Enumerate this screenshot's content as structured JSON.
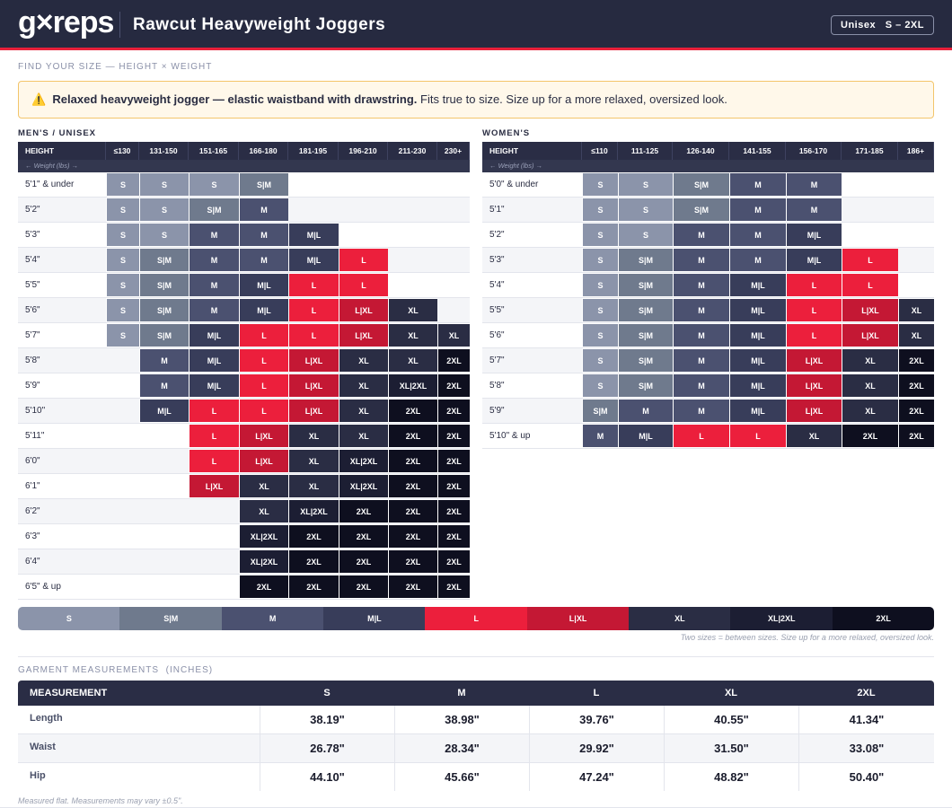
{
  "header": {
    "logo": "g×reps",
    "title": "Rawcut Heavyweight Joggers",
    "badge_fit": "Unisex",
    "badge_range": "S – 2XL"
  },
  "section_title": "FIND YOUR SIZE — HEIGHT × WEIGHT",
  "notice": {
    "icon": "⚠️",
    "bold": "Relaxed heavyweight jogger — elastic waistband with drawstring.",
    "text": "Fits true to size. Size up for a more relaxed, oversized look."
  },
  "mens_table": {
    "title": "MEN'S / UNISEX",
    "header": [
      "HEIGHT",
      "≤130",
      "131-150",
      "151-165",
      "166-180",
      "181-195",
      "196-210",
      "211-230",
      "230+"
    ],
    "weight_note": "← Weight (lbs) →",
    "rows": [
      {
        "height": "5'1\" & under",
        "sizes": [
          "S",
          "S",
          "S",
          "S|M",
          null,
          null,
          null,
          null
        ]
      },
      {
        "height": "5'2\"",
        "sizes": [
          "S",
          "S",
          "S|M",
          "M",
          null,
          null,
          null,
          null
        ]
      },
      {
        "height": "5'3\"",
        "sizes": [
          "S",
          "S",
          "M",
          "M",
          "M|L",
          null,
          null,
          null
        ]
      },
      {
        "height": "5'4\"",
        "sizes": [
          "S",
          "S|M",
          "M",
          "M",
          "M|L",
          "L",
          null,
          null
        ]
      },
      {
        "height": "5'5\"",
        "sizes": [
          "S",
          "S|M",
          "M",
          "M|L",
          "L",
          "L",
          null,
          null
        ]
      },
      {
        "height": "5'6\"",
        "sizes": [
          "S",
          "S|M",
          "M",
          "M|L",
          "L",
          "L|XL",
          "XL",
          null
        ]
      },
      {
        "height": "5'7\"",
        "sizes": [
          "S",
          "S|M",
          "M|L",
          "L",
          "L",
          "L|XL",
          "XL",
          "XL"
        ]
      },
      {
        "height": "5'8\"",
        "sizes": [
          null,
          "M",
          "M|L",
          "L",
          "L|XL",
          "XL",
          "XL",
          "2XL"
        ]
      },
      {
        "height": "5'9\"",
        "sizes": [
          null,
          "M",
          "M|L",
          "L",
          "L|XL",
          "XL",
          "XL|2XL",
          "2XL"
        ]
      },
      {
        "height": "5'10\"",
        "sizes": [
          null,
          "M|L",
          "L",
          "L",
          "L|XL",
          "XL",
          "2XL",
          "2XL"
        ]
      },
      {
        "height": "5'11\"",
        "sizes": [
          null,
          null,
          "L",
          "L|XL",
          "XL",
          "XL",
          "2XL",
          "2XL"
        ]
      },
      {
        "height": "6'0\"",
        "sizes": [
          null,
          null,
          "L",
          "L|XL",
          "XL",
          "XL|2XL",
          "2XL",
          "2XL"
        ]
      },
      {
        "height": "6'1\"",
        "sizes": [
          null,
          null,
          "L|XL",
          "XL",
          "XL",
          "XL|2XL",
          "2XL",
          "2XL"
        ]
      },
      {
        "height": "6'2\"",
        "sizes": [
          null,
          null,
          null,
          "XL",
          "XL|2XL",
          "2XL",
          "2XL",
          "2XL"
        ]
      },
      {
        "height": "6'3\"",
        "sizes": [
          null,
          null,
          null,
          "XL|2XL",
          "2XL",
          "2XL",
          "2XL",
          "2XL"
        ]
      },
      {
        "height": "6'4\"",
        "sizes": [
          null,
          null,
          null,
          "XL|2XL",
          "2XL",
          "2XL",
          "2XL",
          "2XL"
        ]
      },
      {
        "height": "6'5\" & up",
        "sizes": [
          null,
          null,
          null,
          "2XL",
          "2XL",
          "2XL",
          "2XL",
          "2XL"
        ]
      }
    ]
  },
  "womens_table": {
    "title": "WOMEN'S",
    "header": [
      "HEIGHT",
      "≤110",
      "111-125",
      "126-140",
      "141-155",
      "156-170",
      "171-185",
      "186+"
    ],
    "weight_note": "← Weight (lbs) →",
    "rows": [
      {
        "height": "5'0\" & under",
        "sizes": [
          "S",
          "S",
          "S|M",
          "M",
          "M",
          null,
          null
        ]
      },
      {
        "height": "5'1\"",
        "sizes": [
          "S",
          "S",
          "S|M",
          "M",
          "M",
          null,
          null
        ]
      },
      {
        "height": "5'2\"",
        "sizes": [
          "S",
          "S",
          "M",
          "M",
          "M|L",
          null,
          null
        ]
      },
      {
        "height": "5'3\"",
        "sizes": [
          "S",
          "S|M",
          "M",
          "M",
          "M|L",
          "L",
          null
        ]
      },
      {
        "height": "5'4\"",
        "sizes": [
          "S",
          "S|M",
          "M",
          "M|L",
          "L",
          "L",
          null
        ]
      },
      {
        "height": "5'5\"",
        "sizes": [
          "S",
          "S|M",
          "M",
          "M|L",
          "L",
          "L|XL",
          "XL"
        ]
      },
      {
        "height": "5'6\"",
        "sizes": [
          "S",
          "S|M",
          "M",
          "M|L",
          "L",
          "L|XL",
          "XL"
        ]
      },
      {
        "height": "5'7\"",
        "sizes": [
          "S",
          "S|M",
          "M",
          "M|L",
          "L|XL",
          "XL",
          "2XL"
        ]
      },
      {
        "height": "5'8\"",
        "sizes": [
          "S",
          "S|M",
          "M",
          "M|L",
          "L|XL",
          "XL",
          "2XL"
        ]
      },
      {
        "height": "5'9\"",
        "sizes": [
          "S|M",
          "M",
          "M",
          "M|L",
          "L|XL",
          "XL",
          "2XL"
        ]
      },
      {
        "height": "5'10\" & up",
        "sizes": [
          "M",
          "M|L",
          "L",
          "L",
          "XL",
          "2XL",
          "2XL"
        ]
      }
    ]
  },
  "legend": {
    "items": [
      {
        "label": "S",
        "color": "#8b94aa"
      },
      {
        "label": "S|M",
        "color": "#6f7a8d"
      },
      {
        "label": "M",
        "color": "#4b5170"
      },
      {
        "label": "M|L",
        "color": "#383d5a"
      },
      {
        "label": "L",
        "color": "#ec1f3c"
      },
      {
        "label": "L|XL",
        "color": "#c41834"
      },
      {
        "label": "XL",
        "color": "#2a2d44"
      },
      {
        "label": "XL|2XL",
        "color": "#1c1e33"
      },
      {
        "label": "2XL",
        "color": "#0e0f1f"
      }
    ],
    "note": "Two sizes = between sizes. Size up for a more relaxed, oversized look."
  },
  "measurements": {
    "title": "GARMENT MEASUREMENTS",
    "unit": "(INCHES)",
    "header": [
      "MEASUREMENT",
      "S",
      "M",
      "L",
      "XL",
      "2XL"
    ],
    "rows": [
      [
        "Length",
        "38.19\"",
        "38.98\"",
        "39.76\"",
        "40.55\"",
        "41.34\""
      ],
      [
        "Waist",
        "26.78\"",
        "28.34\"",
        "29.92\"",
        "31.50\"",
        "33.08\""
      ],
      [
        "Hip",
        "44.10\"",
        "45.66\"",
        "47.24\"",
        "48.82\"",
        "50.40\""
      ]
    ],
    "footnote": "Measured flat. Measurements may vary ±0.5\"."
  }
}
